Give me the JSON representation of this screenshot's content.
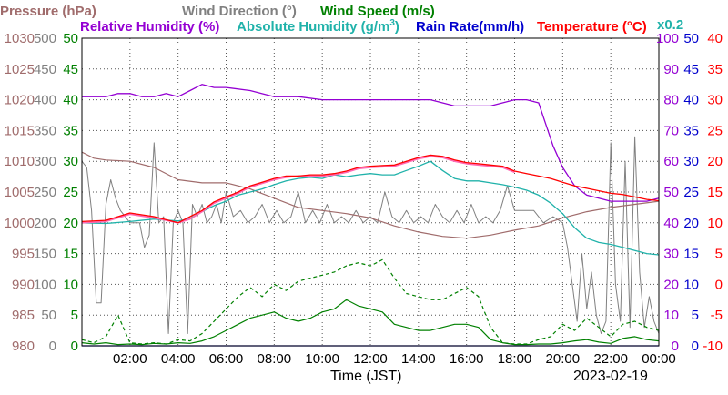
{
  "chart_data": {
    "type": "line",
    "date": "2023-02-19",
    "xlabel": "Time (JST)",
    "x_ticks": [
      "02:00",
      "04:00",
      "06:00",
      "08:00",
      "10:00",
      "12:00",
      "14:00",
      "16:00",
      "18:00",
      "20:00",
      "22:00",
      "00:00"
    ],
    "xlim_hours": [
      0,
      24
    ],
    "grid": true,
    "legend": {
      "pressure": "Pressure (hPa)",
      "wind_direction": "Wind Direction (°)",
      "wind_speed": "Wind Speed (m/s)",
      "relative_humidity": "Relative Humidity (%)",
      "absolute_humidity": "Absolute Humidity (g/m",
      "absolute_humidity_sup": "3",
      "absolute_humidity_close": ")",
      "rain_rate": "Rain Rate(mm/h)",
      "temperature": "Temperature (°C)",
      "scale_note": "x0.2"
    },
    "colors": {
      "pressure": "#a06c6c",
      "wind_direction": "#808080",
      "wind_speed": "#008000",
      "relative_humidity": "#9400d3",
      "absolute_humidity": "#20b2aa",
      "rain_rate": "#0000cd",
      "temperature": "#ff0000",
      "dew_point": "#ff69b4"
    },
    "axes": {
      "pressure": {
        "min": 980,
        "max": 1030,
        "ticks": [
          "1030",
          "1025",
          "1020",
          "1015",
          "1010",
          "1005",
          "1000",
          "995",
          "990",
          "985",
          "980"
        ]
      },
      "wind_direction": {
        "min": 0,
        "max": 500,
        "ticks": [
          "500",
          "450",
          "400",
          "350",
          "300",
          "250",
          "200",
          "150",
          "100",
          "50",
          "0"
        ]
      },
      "wind_speed": {
        "min": 0,
        "max": 50,
        "ticks": [
          "50",
          "45",
          "40",
          "35",
          "30",
          "25",
          "20",
          "15",
          "10",
          "5",
          "0"
        ]
      },
      "relative_humidity": {
        "min": 0,
        "max": 100,
        "ticks": [
          "100",
          "90",
          "80",
          "70",
          "60",
          "50",
          "40",
          "30",
          "20",
          "10",
          "0"
        ]
      },
      "rain_rate": {
        "min": 0,
        "max": 50,
        "ticks": [
          "50",
          "45",
          "40",
          "35",
          "30",
          "25",
          "20",
          "15",
          "10",
          "5",
          "0"
        ]
      },
      "temperature": {
        "min": -10,
        "max": 40,
        "ticks": [
          "40",
          "35",
          "30",
          "25",
          "20",
          "15",
          "10",
          "5",
          "0",
          "-5",
          "-10"
        ]
      }
    },
    "series": [
      {
        "key": "relative_humidity",
        "name": "Relative Humidity (%)",
        "x": [
          0,
          1,
          1.5,
          2,
          2.5,
          3,
          3.5,
          4,
          4.5,
          5,
          5.5,
          6,
          7,
          8,
          9,
          10,
          11,
          12,
          13,
          14,
          14.5,
          15,
          15.5,
          16,
          16.5,
          17,
          17.5,
          18,
          18.5,
          19,
          19.3,
          19.6,
          20,
          20.5,
          21,
          21.5,
          22,
          22.5,
          23,
          23.5,
          24
        ],
        "y": [
          81,
          81,
          82,
          82,
          81,
          81,
          82,
          81,
          83,
          85,
          84,
          84,
          83,
          81,
          81,
          80,
          80,
          80,
          80,
          80,
          80,
          79,
          78,
          78,
          78,
          78,
          79,
          80,
          80,
          79,
          72,
          65,
          58,
          52,
          49,
          48,
          47,
          47,
          47,
          47,
          48
        ]
      },
      {
        "key": "absolute_humidity",
        "name": "Absolute Humidity (g/m3)",
        "x": [
          0,
          1,
          2,
          3,
          4,
          4.5,
          5,
          5.5,
          6,
          6.5,
          7,
          7.5,
          8,
          8.5,
          9,
          9.5,
          10,
          10.5,
          11,
          11.5,
          12,
          12.5,
          13,
          13.5,
          14,
          14.5,
          15,
          15.5,
          16,
          16.5,
          17,
          17.5,
          18,
          18.5,
          19,
          19.5,
          20,
          20.5,
          21,
          21.5,
          22,
          22.5,
          23,
          23.5,
          24
        ],
        "y": [
          200,
          199,
          202,
          206,
          203,
          207,
          218,
          228,
          235,
          245,
          250,
          255,
          262,
          268,
          272,
          274,
          272,
          278,
          275,
          278,
          280,
          278,
          278,
          285,
          292,
          300,
          285,
          272,
          268,
          268,
          265,
          262,
          258,
          253,
          245,
          232,
          215,
          192,
          175,
          168,
          165,
          160,
          155,
          150,
          148
        ]
      },
      {
        "key": "temperature",
        "name": "Temperature (°C)",
        "x": [
          0,
          1,
          2,
          3,
          4,
          4.5,
          5,
          5.5,
          6,
          6.5,
          7,
          7.5,
          8,
          8.5,
          9,
          9.5,
          10,
          10.5,
          11,
          11.5,
          12,
          12.5,
          13,
          13.5,
          14,
          14.5,
          15,
          15.5,
          16,
          16.5,
          17,
          17.5,
          18,
          18.5,
          19,
          19.5,
          20,
          20.5,
          21,
          21.5,
          22,
          22.5,
          23,
          23.5,
          24
        ],
        "y": [
          10.2,
          10.4,
          11.6,
          11.0,
          10.0,
          11.0,
          12.0,
          13.4,
          14.2,
          15.0,
          16.0,
          16.6,
          17.2,
          17.6,
          17.6,
          17.8,
          17.8,
          18.0,
          18.4,
          19.0,
          19.2,
          19.3,
          19.4,
          20.0,
          20.6,
          21.0,
          20.8,
          20.2,
          19.8,
          19.6,
          19.4,
          19.2,
          18.4,
          18.0,
          17.6,
          17.2,
          16.6,
          16.0,
          15.6,
          15.2,
          14.8,
          14.6,
          14.2,
          13.8,
          13.6
        ]
      },
      {
        "key": "dew_point",
        "name": "",
        "x": [
          0,
          1,
          2,
          3,
          4,
          4.5,
          5,
          5.5,
          6,
          6.5,
          7,
          7.5,
          8,
          8.5,
          9,
          9.5,
          10,
          10.5,
          11,
          11.5,
          12,
          12.5,
          13,
          13.5,
          14,
          14.5,
          15,
          15.5,
          16,
          16.5,
          17,
          17.5,
          18
        ],
        "y": [
          10.0,
          10.2,
          11.4,
          10.8,
          10.0,
          10.6,
          11.8,
          13.2,
          14.0,
          14.8,
          15.8,
          16.4,
          17.0,
          17.4,
          17.6,
          17.6,
          17.6,
          17.8,
          18.2,
          18.8,
          19.0,
          19.1,
          19.2,
          19.8,
          20.4,
          20.8,
          20.6,
          20.0,
          19.6,
          19.4,
          19.2,
          19.0,
          18.2
        ]
      },
      {
        "key": "pressure",
        "name": "Pressure (hPa)",
        "x": [
          0,
          0.5,
          1,
          2,
          3,
          4,
          5,
          6,
          7,
          8,
          9,
          10,
          11,
          12,
          13,
          14,
          15,
          16,
          17,
          18,
          19,
          20,
          21,
          22,
          23,
          24
        ],
        "y": [
          1011.5,
          1010.5,
          1010.2,
          1010.0,
          1009.0,
          1007.0,
          1006.5,
          1006.5,
          1005.5,
          1004.0,
          1002.5,
          1002.0,
          1001.5,
          1000.8,
          999.5,
          998.5,
          997.8,
          997.5,
          998.0,
          998.8,
          999.5,
          1000.8,
          1001.8,
          1002.5,
          1003.0,
          1003.5
        ]
      },
      {
        "key": "wind_direction",
        "name": "Wind Direction (°)",
        "x": [
          0,
          0.2,
          0.4,
          0.6,
          0.8,
          1.0,
          1.2,
          1.4,
          1.6,
          1.8,
          2.0,
          2.2,
          2.4,
          2.6,
          2.8,
          3.0,
          3.2,
          3.4,
          3.6,
          3.8,
          4.0,
          4.2,
          4.4,
          4.6,
          4.8,
          5.0,
          5.2,
          5.4,
          5.6,
          5.8,
          6.0,
          6.3,
          6.6,
          6.9,
          7.2,
          7.5,
          7.8,
          8.1,
          8.4,
          8.7,
          9.0,
          9.3,
          9.6,
          9.9,
          10.2,
          10.5,
          10.8,
          11.1,
          11.4,
          11.7,
          12.0,
          12.3,
          12.6,
          12.9,
          13.2,
          13.5,
          13.8,
          14.1,
          14.4,
          14.7,
          15.0,
          15.3,
          15.6,
          15.9,
          16.2,
          16.5,
          16.8,
          17.1,
          17.4,
          17.7,
          18.0,
          18.4,
          18.8,
          19.2,
          19.6,
          20.0,
          20.2,
          20.4,
          20.6,
          20.8,
          21.0,
          21.2,
          21.4,
          21.6,
          21.8,
          22.0,
          22.2,
          22.4,
          22.6,
          22.8,
          23.0,
          23.2,
          23.4,
          23.6,
          23.8,
          24.0
        ],
        "y": [
          300,
          290,
          220,
          70,
          70,
          230,
          270,
          240,
          220,
          210,
          200,
          200,
          200,
          160,
          180,
          330,
          200,
          210,
          20,
          200,
          220,
          200,
          20,
          230,
          210,
          230,
          200,
          210,
          230,
          200,
          250,
          210,
          220,
          200,
          210,
          230,
          200,
          220,
          200,
          210,
          250,
          200,
          220,
          200,
          230,
          200,
          210,
          200,
          220,
          200,
          210,
          200,
          250,
          210,
          200,
          220,
          200,
          210,
          200,
          230,
          210,
          200,
          220,
          200,
          230,
          200,
          210,
          200,
          220,
          260,
          220,
          220,
          220,
          200,
          210,
          200,
          160,
          100,
          40,
          150,
          60,
          120,
          50,
          20,
          40,
          330,
          100,
          40,
          300,
          30,
          340,
          120,
          30,
          80,
          40,
          20
        ]
      },
      {
        "key": "wind_speed",
        "name": "Wind Speed (m/s)",
        "x": [
          0,
          0.5,
          1,
          1.5,
          2,
          2.5,
          3,
          3.5,
          4,
          4.5,
          5,
          5.5,
          6,
          6.5,
          7,
          7.5,
          8,
          8.5,
          9,
          9.5,
          10,
          10.5,
          11,
          11.5,
          12,
          12.5,
          13,
          13.5,
          14,
          14.5,
          15,
          15.5,
          16,
          16.5,
          17,
          17.5,
          18,
          18.5,
          19,
          19.5,
          20,
          20.5,
          21,
          21.5,
          22,
          22.5,
          23,
          23.5,
          24
        ],
        "y": [
          0.5,
          0.3,
          0.5,
          0.2,
          0.3,
          0.2,
          0.4,
          0.3,
          0.5,
          0.4,
          0.8,
          1.5,
          2.5,
          3.5,
          4.5,
          5.0,
          5.5,
          4.5,
          4.0,
          4.5,
          5.5,
          6.0,
          7.5,
          6.5,
          6.0,
          5.5,
          3.5,
          3.0,
          2.5,
          2.5,
          3.0,
          3.5,
          3.5,
          3.0,
          1.0,
          0.5,
          0.2,
          0.2,
          0.3,
          0.3,
          0.5,
          0.8,
          1.0,
          0.6,
          0.4,
          1.2,
          1.5,
          1.0,
          0.8
        ]
      },
      {
        "key": "wind_gust",
        "name": "",
        "x": [
          0,
          0.5,
          1,
          1.5,
          2,
          2.5,
          3,
          3.5,
          4,
          4.5,
          5,
          5.5,
          6,
          6.5,
          7,
          7.5,
          8,
          8.5,
          9,
          9.5,
          10,
          10.5,
          11,
          11.5,
          12,
          12.5,
          13,
          13.5,
          14,
          14.5,
          15,
          15.5,
          16,
          16.5,
          17,
          17.5,
          18,
          18.5,
          19,
          19.5,
          20,
          20.5,
          21,
          21.5,
          22,
          22.5,
          23,
          23.5,
          24
        ],
        "y": [
          1.0,
          0.5,
          1.5,
          5.0,
          0.5,
          0.3,
          0.5,
          0.3,
          1.0,
          0.8,
          2.0,
          4.0,
          6.0,
          8.0,
          9.5,
          8.0,
          10.0,
          9.0,
          10.5,
          11.0,
          11.5,
          12.0,
          13.0,
          13.5,
          13.0,
          14.0,
          11.0,
          8.5,
          8.0,
          7.5,
          7.5,
          8.5,
          9.5,
          8.0,
          3.0,
          0.5,
          0.3,
          0.3,
          1.0,
          1.5,
          3.5,
          2.5,
          4.5,
          3.0,
          1.5,
          3.5,
          4.0,
          3.0,
          2.5
        ]
      },
      {
        "key": "rain_rate",
        "name": "Rain Rate(mm/h)",
        "x": [
          0,
          24
        ],
        "y": [
          0,
          0
        ]
      }
    ]
  }
}
